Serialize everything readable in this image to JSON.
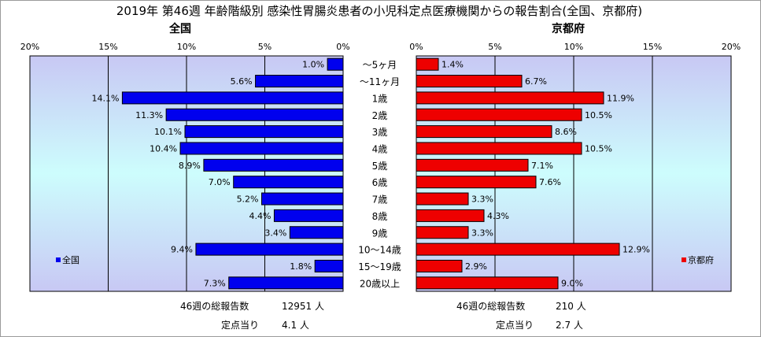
{
  "chart_data": {
    "type": "bar",
    "title": "2019年 第46週 年齢階級別 感染性胃腸炎患者の小児科定点医療機関からの報告割合(全国、京都府)",
    "categories": [
      "～5ヶ月",
      "～11ヶ月",
      "1歳",
      "2歳",
      "3歳",
      "4歳",
      "5歳",
      "6歳",
      "7歳",
      "8歳",
      "9歳",
      "10～14歳",
      "15～19歳",
      "20歳以上"
    ],
    "x_ticks": [
      "20%",
      "15%",
      "10%",
      "5%",
      "0%"
    ],
    "x_ticks_right": [
      "0%",
      "5%",
      "10%",
      "15%",
      "20%"
    ],
    "xlim": [
      0,
      20
    ],
    "grid": true,
    "series": [
      {
        "name": "全国",
        "header": "全国",
        "legend": "全国",
        "color": "#0000ee",
        "values": [
          1.0,
          5.6,
          14.1,
          11.3,
          10.1,
          10.4,
          8.9,
          7.0,
          5.2,
          4.4,
          3.4,
          9.4,
          1.8,
          7.3
        ],
        "labels": [
          "1.0%",
          "5.6%",
          "14.1%",
          "11.3%",
          "10.1%",
          "10.4%",
          "8.9%",
          "7.0%",
          "5.2%",
          "4.4%",
          "3.4%",
          "9.4%",
          "1.8%",
          "7.3%"
        ],
        "total_label": "46週の総報告数",
        "total_value": "12951 人",
        "per_label": "定点当り",
        "per_value": "4.1 人"
      },
      {
        "name": "京都府",
        "header": "京都府",
        "legend": "京都府",
        "color": "#ee0000",
        "values": [
          1.4,
          6.7,
          11.9,
          10.5,
          8.6,
          10.5,
          7.1,
          7.6,
          3.3,
          4.3,
          3.3,
          12.9,
          2.9,
          9.0
        ],
        "labels": [
          "1.4%",
          "6.7%",
          "11.9%",
          "10.5%",
          "8.6%",
          "10.5%",
          "7.1%",
          "7.6%",
          "3.3%",
          "4.3%",
          "3.3%",
          "12.9%",
          "2.9%",
          "9.0%"
        ],
        "total_label": "46週の総報告数",
        "total_value": "210 人",
        "per_label": "定点当り",
        "per_value": "2.7 人"
      }
    ]
  }
}
